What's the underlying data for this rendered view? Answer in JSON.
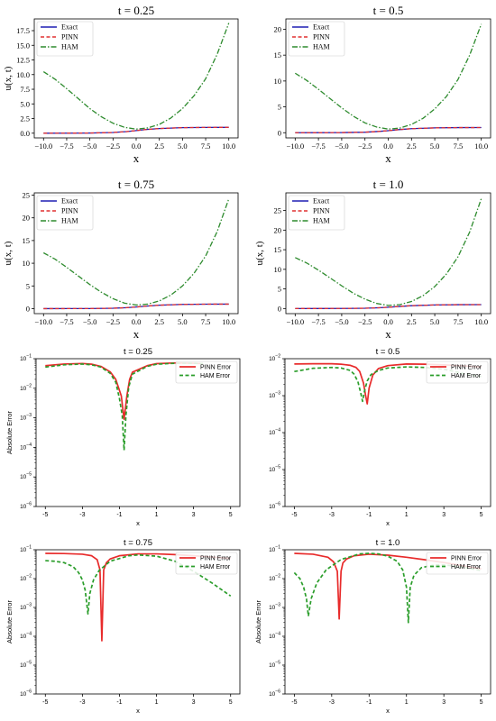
{
  "chart_data": [
    {
      "type": "line",
      "title": "t = 0.25",
      "xlabel": "x",
      "ylabel": "u(x, t)",
      "xlim": [
        -11,
        11
      ],
      "ylim": [
        -0.8,
        19.5
      ],
      "xticks": [
        -10,
        -7.5,
        -5,
        -2.5,
        0,
        2.5,
        5,
        7.5,
        10
      ],
      "xtick_labels": [
        "−10.0",
        "−7.5",
        "−5.0",
        "−2.5",
        "0.0",
        "2.5",
        "5.0",
        "7.5",
        "10.0"
      ],
      "yticks": [
        0,
        2.5,
        5,
        7.5,
        10,
        12.5,
        15,
        17.5
      ],
      "ytick_labels": [
        "0.0",
        "2.5",
        "5.0",
        "7.5",
        "10.0",
        "12.5",
        "15.0",
        "17.5"
      ],
      "legend_loc": "upper-left",
      "series": [
        {
          "name": "Exact",
          "color": "#1f1fb4",
          "style": "solid",
          "x": [
            -10,
            -7.5,
            -5,
            -2.5,
            -1,
            0,
            1,
            2.5,
            5,
            7.5,
            10
          ],
          "y": [
            0.0,
            0.01,
            0.03,
            0.12,
            0.28,
            0.45,
            0.62,
            0.8,
            0.95,
            0.99,
            1.0
          ]
        },
        {
          "name": "PINN",
          "color": "#e03030",
          "style": "dashed",
          "x": [
            -10,
            -7.5,
            -5,
            -2.5,
            -1,
            0,
            1,
            2.5,
            5,
            7.5,
            10
          ],
          "y": [
            0.0,
            0.01,
            0.03,
            0.12,
            0.28,
            0.45,
            0.62,
            0.8,
            0.95,
            0.99,
            1.0
          ]
        },
        {
          "name": "HAM",
          "color": "#2e8b2e",
          "style": "dashdot",
          "x": [
            -10,
            -8.75,
            -7.5,
            -6.25,
            -5,
            -3.75,
            -2.5,
            -1.25,
            0,
            1.25,
            2.5,
            3.75,
            5,
            6.25,
            7.5,
            8.75,
            10
          ],
          "y": [
            10.5,
            9.2,
            7.6,
            5.9,
            4.2,
            2.8,
            1.7,
            1.0,
            0.7,
            0.9,
            1.5,
            2.6,
            4.2,
            6.4,
            9.3,
            13.5,
            18.8
          ]
        }
      ]
    },
    {
      "type": "line",
      "title": "t = 0.5",
      "xlabel": "x",
      "ylabel": "",
      "xlim": [
        -11,
        11
      ],
      "ylim": [
        -1,
        22
      ],
      "xticks": [
        -10,
        -7.5,
        -5,
        -2.5,
        0,
        2.5,
        5,
        7.5,
        10
      ],
      "xtick_labels": [
        "−10.0",
        "−7.5",
        "−5.0",
        "−2.5",
        "0.0",
        "2.5",
        "5.0",
        "7.5",
        "10.0"
      ],
      "yticks": [
        0,
        5,
        10,
        15,
        20
      ],
      "ytick_labels": [
        "0",
        "5",
        "10",
        "15",
        "20"
      ],
      "legend_loc": "upper-left",
      "series": [
        {
          "name": "Exact",
          "color": "#1f1fb4",
          "style": "solid",
          "x": [
            -10,
            -7.5,
            -5,
            -2.5,
            -1,
            0,
            1,
            2.5,
            5,
            7.5,
            10
          ],
          "y": [
            0.0,
            0.01,
            0.03,
            0.1,
            0.25,
            0.4,
            0.58,
            0.78,
            0.94,
            0.99,
            1.0
          ]
        },
        {
          "name": "PINN",
          "color": "#e03030",
          "style": "dashed",
          "x": [
            -10,
            -7.5,
            -5,
            -2.5,
            -1,
            0,
            1,
            2.5,
            5,
            7.5,
            10
          ],
          "y": [
            0.0,
            0.01,
            0.03,
            0.1,
            0.25,
            0.4,
            0.58,
            0.78,
            0.94,
            0.99,
            1.0
          ]
        },
        {
          "name": "HAM",
          "color": "#2e8b2e",
          "style": "dashdot",
          "x": [
            -10,
            -8.75,
            -7.5,
            -6.25,
            -5,
            -3.75,
            -2.5,
            -1.25,
            0,
            1.25,
            2.5,
            3.75,
            5,
            6.25,
            7.5,
            8.75,
            10
          ],
          "y": [
            11.5,
            10.1,
            8.4,
            6.6,
            4.8,
            3.2,
            1.9,
            1.1,
            0.7,
            0.9,
            1.6,
            2.8,
            4.6,
            7.0,
            10.3,
            15.0,
            21.0
          ]
        }
      ]
    },
    {
      "type": "line",
      "title": "t = 0.75",
      "xlabel": "x",
      "ylabel": "u(x, t)",
      "xlim": [
        -11,
        11
      ],
      "ylim": [
        -1.1,
        25.5
      ],
      "xticks": [
        -10,
        -7.5,
        -5,
        -2.5,
        0,
        2.5,
        5,
        7.5,
        10
      ],
      "xtick_labels": [
        "−10.0",
        "−7.5",
        "−5.0",
        "−2.5",
        "0.0",
        "2.5",
        "5.0",
        "7.5",
        "10.0"
      ],
      "yticks": [
        0,
        5,
        10,
        15,
        20,
        25
      ],
      "ytick_labels": [
        "0",
        "5",
        "10",
        "15",
        "20",
        "25"
      ],
      "legend_loc": "upper-left",
      "series": [
        {
          "name": "Exact",
          "color": "#1f1fb4",
          "style": "solid",
          "x": [
            -10,
            -7.5,
            -5,
            -2.5,
            -1,
            0,
            1,
            2.5,
            5,
            7.5,
            10
          ],
          "y": [
            0.0,
            0.01,
            0.02,
            0.09,
            0.22,
            0.36,
            0.54,
            0.76,
            0.93,
            0.99,
            1.0
          ]
        },
        {
          "name": "PINN",
          "color": "#e03030",
          "style": "dashed",
          "x": [
            -10,
            -7.5,
            -5,
            -2.5,
            -1,
            0,
            1,
            2.5,
            5,
            7.5,
            10
          ],
          "y": [
            0.0,
            0.01,
            0.02,
            0.09,
            0.22,
            0.36,
            0.54,
            0.76,
            0.93,
            0.99,
            1.0
          ]
        },
        {
          "name": "HAM",
          "color": "#2e8b2e",
          "style": "dashdot",
          "x": [
            -10,
            -8.75,
            -7.5,
            -6.25,
            -5,
            -3.75,
            -2.5,
            -1.25,
            0,
            1.25,
            2.5,
            3.75,
            5,
            6.25,
            7.5,
            8.75,
            10
          ],
          "y": [
            12.3,
            10.9,
            9.1,
            7.2,
            5.3,
            3.6,
            2.2,
            1.2,
            0.8,
            1.0,
            1.7,
            3.0,
            5.0,
            7.8,
            11.6,
            17.0,
            24.2
          ]
        }
      ]
    },
    {
      "type": "line",
      "title": "t = 1.0",
      "xlabel": "x",
      "ylabel": "u(x, t)",
      "xlim": [
        -11,
        11
      ],
      "ylim": [
        -1.3,
        29.5
      ],
      "xticks": [
        -10,
        -7.5,
        -5,
        -2.5,
        0,
        2.5,
        5,
        7.5,
        10
      ],
      "xtick_labels": [
        "−10.0",
        "−7.5",
        "−5.0",
        "−2.5",
        "0.0",
        "2.5",
        "5.0",
        "7.5",
        "10.0"
      ],
      "yticks": [
        0,
        5,
        10,
        15,
        20,
        25
      ],
      "ytick_labels": [
        "0",
        "5",
        "10",
        "15",
        "20",
        "25"
      ],
      "legend_loc": "upper-left",
      "series": [
        {
          "name": "Exact",
          "color": "#1f1fb4",
          "style": "solid",
          "x": [
            -10,
            -7.5,
            -5,
            -2.5,
            -1,
            0,
            1,
            2.5,
            5,
            7.5,
            10
          ],
          "y": [
            0.0,
            0.01,
            0.02,
            0.08,
            0.2,
            0.33,
            0.5,
            0.73,
            0.92,
            0.99,
            1.0
          ]
        },
        {
          "name": "PINN",
          "color": "#e03030",
          "style": "dashed",
          "x": [
            -10,
            -7.5,
            -5,
            -2.5,
            -1,
            0,
            1,
            2.5,
            5,
            7.5,
            10
          ],
          "y": [
            0.0,
            0.01,
            0.02,
            0.08,
            0.2,
            0.33,
            0.5,
            0.73,
            0.92,
            0.99,
            1.0
          ]
        },
        {
          "name": "HAM",
          "color": "#2e8b2e",
          "style": "dashdot",
          "x": [
            -10,
            -8.75,
            -7.5,
            -6.25,
            -5,
            -3.75,
            -2.5,
            -1.25,
            0,
            1.25,
            2.5,
            3.75,
            5,
            6.25,
            7.5,
            8.75,
            10
          ],
          "y": [
            13.0,
            11.6,
            9.8,
            7.8,
            5.8,
            3.9,
            2.4,
            1.3,
            0.8,
            1.0,
            1.8,
            3.3,
            5.6,
            8.8,
            13.2,
            19.5,
            28.0
          ]
        }
      ]
    },
    {
      "type": "line",
      "title": "t = 0.25",
      "xlabel": "x",
      "ylabel": "Absolute Error",
      "yscale": "log",
      "xlim": [
        -5.5,
        5.5
      ],
      "ylim_log10": [
        -6,
        -1
      ],
      "xticks": [
        -5,
        -3,
        -1,
        1,
        3,
        5
      ],
      "xtick_labels": [
        "-5",
        "-3",
        "-1",
        "1",
        "3",
        "5"
      ],
      "yticks_log10": [
        -6,
        -5,
        -4,
        -3,
        -2,
        -1
      ],
      "legend_loc": "upper-right",
      "series": [
        {
          "name": "PINN Error",
          "color": "#e82b2b",
          "style": "solid",
          "x": [
            -5,
            -4,
            -3,
            -2.5,
            -2,
            -1.5,
            -1.2,
            -0.9,
            -0.75,
            -0.6,
            -0.45,
            -0.3,
            0.5,
            1,
            2,
            3,
            3.5
          ],
          "y": [
            0.058,
            0.066,
            0.069,
            0.065,
            0.055,
            0.036,
            0.02,
            0.0055,
            0.0009,
            0.0055,
            0.02,
            0.035,
            0.058,
            0.068,
            0.072,
            0.07,
            0.068
          ]
        },
        {
          "name": "HAM Error",
          "color": "#2a9d2a",
          "style": "dashed",
          "x": [
            -5,
            -4,
            -3,
            -2.5,
            -2,
            -1.5,
            -1.2,
            -1.0,
            -0.85,
            -0.75,
            -0.65,
            -0.5,
            -0.3,
            0.5,
            1,
            2,
            3,
            3.5
          ],
          "y": [
            0.052,
            0.062,
            0.066,
            0.062,
            0.052,
            0.032,
            0.016,
            0.0045,
            0.0012,
            8e-05,
            0.0012,
            0.011,
            0.03,
            0.055,
            0.065,
            0.07,
            0.07,
            0.068
          ]
        }
      ]
    },
    {
      "type": "line",
      "title": "t = 0.5",
      "xlabel": "x",
      "ylabel": "",
      "yscale": "log",
      "xlim": [
        -5.5,
        5.5
      ],
      "ylim_log10": [
        -6,
        -2
      ],
      "xticks": [
        -5,
        -3,
        -1,
        1,
        3,
        5
      ],
      "xtick_labels": [
        "-5",
        "-3",
        "-1",
        "1",
        "3",
        "5"
      ],
      "yticks_log10": [
        -6,
        -5,
        -4,
        -3,
        -2
      ],
      "legend_loc": "upper-right",
      "series": [
        {
          "name": "PINN Error",
          "color": "#e82b2b",
          "style": "solid",
          "x": [
            -5,
            -4,
            -3,
            -2.5,
            -2,
            -1.7,
            -1.5,
            -1.3,
            -1.2,
            -1.1,
            -1.0,
            -0.8,
            -0.5,
            0,
            1,
            2,
            3,
            4,
            5
          ],
          "y": [
            0.0072,
            0.0073,
            0.0073,
            0.0071,
            0.0066,
            0.0058,
            0.0045,
            0.0022,
            0.0011,
            0.0006,
            0.0016,
            0.0036,
            0.0054,
            0.0065,
            0.0072,
            0.0071,
            0.0068,
            0.0064,
            0.006
          ]
        },
        {
          "name": "HAM Error",
          "color": "#2a9d2a",
          "style": "dashed",
          "x": [
            -5,
            -4,
            -3,
            -2.5,
            -2,
            -1.8,
            -1.6,
            -1.45,
            -1.35,
            -1.25,
            -1.1,
            -0.9,
            -0.5,
            0,
            1,
            2,
            3,
            3.5,
            4,
            4.5,
            5
          ],
          "y": [
            0.0045,
            0.0055,
            0.0058,
            0.0056,
            0.0048,
            0.0038,
            0.0024,
            0.0012,
            0.0007,
            0.0013,
            0.0025,
            0.0037,
            0.0048,
            0.0056,
            0.006,
            0.0058,
            0.0052,
            0.0046,
            0.004,
            0.0036,
            0.0033
          ]
        }
      ]
    },
    {
      "type": "line",
      "title": "t = 0.75",
      "xlabel": "x",
      "ylabel": "Absolute Error",
      "yscale": "log",
      "xlim": [
        -5.5,
        5.5
      ],
      "ylim_log10": [
        -6,
        -1
      ],
      "xticks": [
        -5,
        -3,
        -1,
        1,
        3,
        5
      ],
      "xtick_labels": [
        "-5",
        "-3",
        "-1",
        "1",
        "3",
        "5"
      ],
      "yticks_log10": [
        -6,
        -5,
        -4,
        -3,
        -2,
        -1
      ],
      "legend_loc": "upper-right",
      "series": [
        {
          "name": "PINN Error",
          "color": "#e82b2b",
          "style": "solid",
          "x": [
            -5,
            -4,
            -3,
            -2.5,
            -2.2,
            -2.05,
            -1.95,
            -1.85,
            -1.7,
            -1.5,
            -1,
            0,
            1,
            2,
            3,
            4,
            5
          ],
          "y": [
            0.075,
            0.074,
            0.07,
            0.062,
            0.045,
            0.02,
            7e-05,
            0.02,
            0.036,
            0.048,
            0.062,
            0.072,
            0.072,
            0.068,
            0.062,
            0.056,
            0.05
          ]
        },
        {
          "name": "HAM Error",
          "color": "#2a9d2a",
          "style": "dashed",
          "x": [
            -5,
            -4.5,
            -4,
            -3.5,
            -3.2,
            -3.0,
            -2.85,
            -2.7,
            -2.6,
            -2.4,
            -2.1,
            -1.5,
            -0.5,
            0,
            1,
            2,
            3,
            4,
            5
          ],
          "y": [
            0.042,
            0.04,
            0.036,
            0.026,
            0.016,
            0.009,
            0.004,
            0.0006,
            0.003,
            0.009,
            0.019,
            0.04,
            0.062,
            0.066,
            0.06,
            0.04,
            0.018,
            0.007,
            0.0025
          ]
        }
      ]
    },
    {
      "type": "line",
      "title": "t = 1.0",
      "xlabel": "x",
      "ylabel": "Absolute Error",
      "yscale": "log",
      "xlim": [
        -5.5,
        5.5
      ],
      "ylim_log10": [
        -6,
        -1
      ],
      "xticks": [
        -5,
        -3,
        -1,
        1,
        3,
        5
      ],
      "xtick_labels": [
        "-5",
        "-3",
        "-1",
        "1",
        "3",
        "5"
      ],
      "yticks_log10": [
        -6,
        -5,
        -4,
        -3,
        -2,
        -1
      ],
      "legend_loc": "upper-right",
      "series": [
        {
          "name": "PINN Error",
          "color": "#e82b2b",
          "style": "solid",
          "x": [
            -5,
            -4,
            -3.2,
            -2.9,
            -2.7,
            -2.6,
            -2.5,
            -2.4,
            -2.2,
            -1.8,
            -1,
            0,
            1,
            2,
            3,
            4,
            5
          ],
          "y": [
            0.075,
            0.07,
            0.055,
            0.038,
            0.018,
            0.0004,
            0.018,
            0.035,
            0.048,
            0.062,
            0.07,
            0.065,
            0.055,
            0.045,
            0.036,
            0.028,
            0.022
          ]
        },
        {
          "name": "HAM Error",
          "color": "#2a9d2a",
          "style": "dashed",
          "x": [
            -5,
            -4.7,
            -4.5,
            -4.35,
            -4.25,
            -4.1,
            -3.8,
            -3.3,
            -2.5,
            -1.5,
            -1,
            -0.5,
            0,
            0.5,
            0.8,
            1.0,
            1.1,
            1.2,
            1.4,
            1.8,
            2.5,
            3,
            4,
            5
          ],
          "y": [
            0.016,
            0.01,
            0.005,
            0.002,
            0.0005,
            0.002,
            0.007,
            0.02,
            0.046,
            0.072,
            0.075,
            0.072,
            0.06,
            0.04,
            0.02,
            0.005,
            0.0003,
            0.005,
            0.013,
            0.024,
            0.03,
            0.03,
            0.025,
            0.019
          ]
        }
      ]
    }
  ]
}
